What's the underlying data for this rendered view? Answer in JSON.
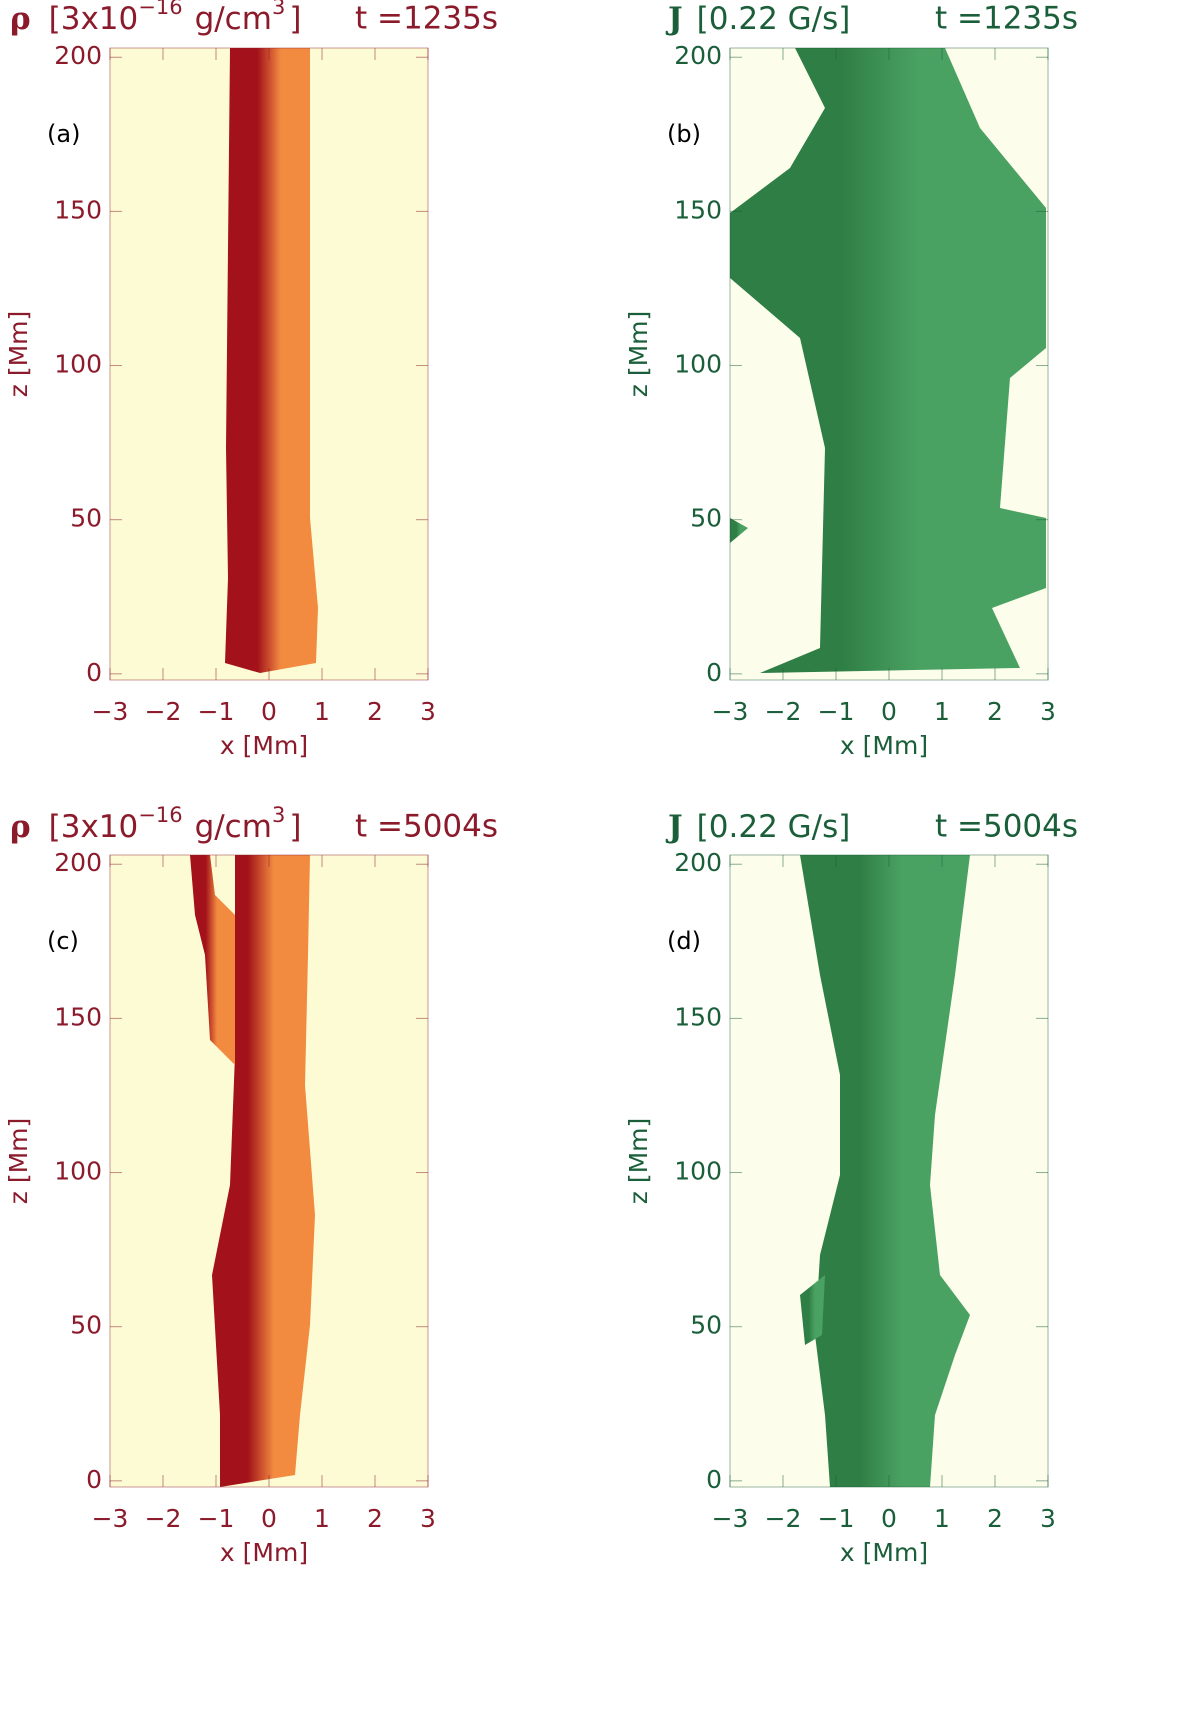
{
  "chart_data": [
    {
      "type": "surface",
      "title": [
        "ρ",
        "[3x10",
        "−16",
        "g/cm",
        "3",
        "]"
      ],
      "time": "t =1235s",
      "label": "(a)",
      "xlabel": "x [Mm]",
      "ylabel": "z [Mm]",
      "xlim": [
        -3,
        3
      ],
      "ylim": [
        -2,
        203
      ],
      "xticks": [
        {
          "value": -3,
          "label": "−3"
        },
        {
          "value": -2,
          "label": "−2"
        },
        {
          "value": -1,
          "label": "−1"
        },
        0,
        1,
        2,
        3
      ],
      "yticks": [
        0,
        50,
        100,
        150,
        200
      ],
      "color": "#8b1a2b",
      "background": "#fdfbd3",
      "surface_colors": [
        "#a3121a",
        "#f28a40"
      ]
    },
    {
      "type": "surface",
      "title": [
        "J",
        "[0.22 G/s]"
      ],
      "time": "t =1235s",
      "label": "(b)",
      "xlabel": "x [Mm]",
      "ylabel": "z [Mm]",
      "xlim": [
        -3,
        3
      ],
      "ylim": [
        -2,
        203
      ],
      "xticks": [
        {
          "value": -3,
          "label": "−3"
        },
        {
          "value": -2,
          "label": "−2"
        },
        {
          "value": -1,
          "label": "−1"
        },
        0,
        1,
        2,
        3
      ],
      "yticks": [
        0,
        50,
        100,
        150,
        200
      ],
      "color": "#1a5e3a",
      "background": "#fdfdeb",
      "surface_colors": [
        "#2f7e45",
        "#4aa262"
      ]
    },
    {
      "type": "surface",
      "title": [
        "ρ",
        "[3x10",
        "−16",
        "g/cm",
        "3",
        "]"
      ],
      "time": "t =5004s",
      "label": "(c)",
      "xlabel": "x [Mm]",
      "ylabel": "z [Mm]",
      "xlim": [
        -3,
        3
      ],
      "ylim": [
        -2,
        203
      ],
      "xticks": [
        {
          "value": -3,
          "label": "−3"
        },
        {
          "value": -2,
          "label": "−2"
        },
        {
          "value": -1,
          "label": "−1"
        },
        0,
        1,
        2,
        3
      ],
      "yticks": [
        0,
        50,
        100,
        150,
        200
      ],
      "color": "#8b1a2b",
      "background": "#fdfbd3",
      "surface_colors": [
        "#a3121a",
        "#f28a40"
      ]
    },
    {
      "type": "surface",
      "title": [
        "J",
        "[0.22 G/s]"
      ],
      "time": "t =5004s",
      "label": "(d)",
      "xlabel": "x [Mm]",
      "ylabel": "z [Mm]",
      "xlim": [
        -3,
        3
      ],
      "ylim": [
        -2,
        203
      ],
      "xticks": [
        {
          "value": -3,
          "label": "−3"
        },
        {
          "value": -2,
          "label": "−2"
        },
        {
          "value": -1,
          "label": "−1"
        },
        0,
        1,
        2,
        3
      ],
      "yticks": [
        0,
        50,
        100,
        150,
        200
      ],
      "color": "#1a5e3a",
      "background": "#fdfdeb",
      "surface_colors": [
        "#2f7e45",
        "#4aa262"
      ]
    }
  ]
}
